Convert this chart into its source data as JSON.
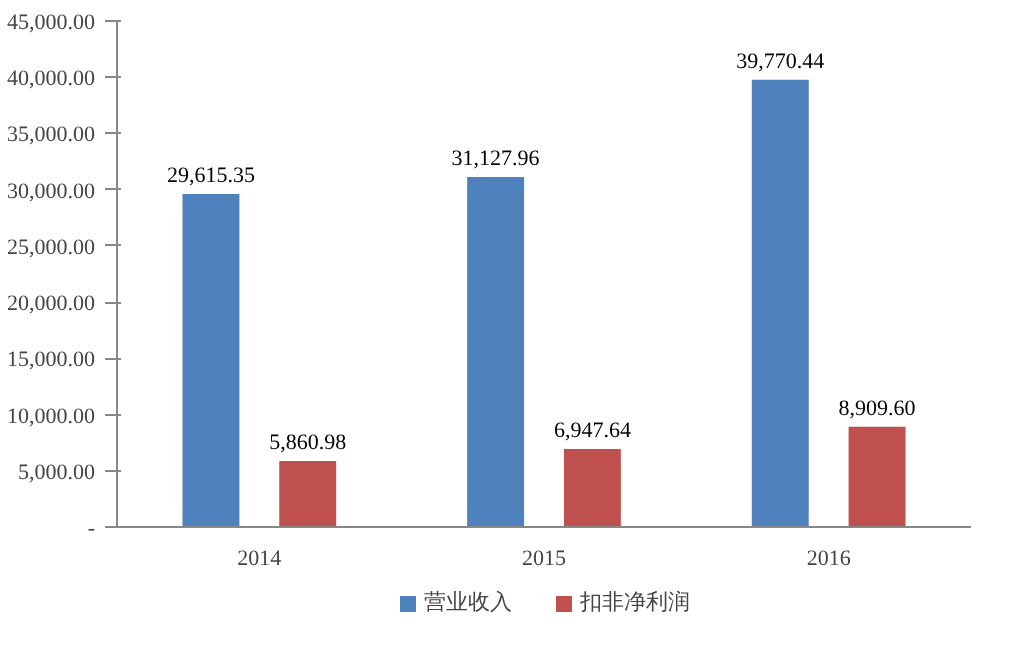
{
  "chart_data": {
    "type": "bar",
    "categories": [
      "2014",
      "2015",
      "2016"
    ],
    "series": [
      {
        "name": "营业收入",
        "color": "#4f81bd",
        "values": [
          29615.35,
          31127.96,
          39770.44
        ],
        "value_labels": [
          "29,615.35",
          "31,127.96",
          "39,770.44"
        ]
      },
      {
        "name": "扣非净利润",
        "color": "#c0504d",
        "values": [
          5860.98,
          6947.64,
          8909.6
        ],
        "value_labels": [
          "5,860.98",
          "6,947.64",
          "8,909.60"
        ]
      }
    ],
    "ylim": [
      0,
      45000
    ],
    "yticks": [
      {
        "value": 0,
        "label": "-"
      },
      {
        "value": 5000,
        "label": "5,000.00"
      },
      {
        "value": 10000,
        "label": "10,000.00"
      },
      {
        "value": 15000,
        "label": "15,000.00"
      },
      {
        "value": 20000,
        "label": "20,000.00"
      },
      {
        "value": 25000,
        "label": "25,000.00"
      },
      {
        "value": 30000,
        "label": "30,000.00"
      },
      {
        "value": 35000,
        "label": "35,000.00"
      },
      {
        "value": 40000,
        "label": "40,000.00"
      },
      {
        "value": 45000,
        "label": "45,000.00"
      }
    ],
    "grid": false,
    "legend": "bottom"
  }
}
